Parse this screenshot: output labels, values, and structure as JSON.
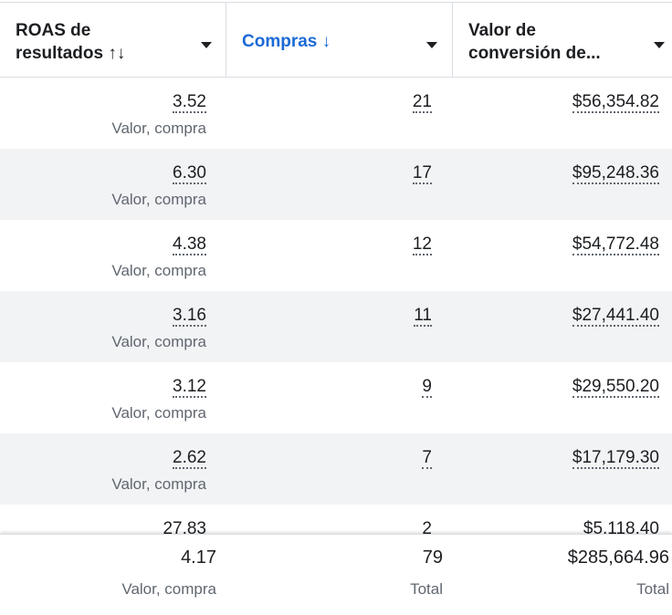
{
  "header": {
    "columns": [
      {
        "lines": [
          "ROAS de",
          "resultados ↑↓"
        ]
      },
      {
        "lines": [
          "Compras ↓"
        ]
      },
      {
        "lines": [
          "Valor de",
          "conversión de..."
        ]
      }
    ]
  },
  "rows": [
    {
      "roas": "3.52",
      "roas_note": "Valor, compra",
      "purchases": "21",
      "value": "$56,354.82"
    },
    {
      "roas": "6.30",
      "roas_note": "Valor, compra",
      "purchases": "17",
      "value": "$95,248.36"
    },
    {
      "roas": "4.38",
      "roas_note": "Valor, compra",
      "purchases": "12",
      "value": "$54,772.48"
    },
    {
      "roas": "3.16",
      "roas_note": "Valor, compra",
      "purchases": "11",
      "value": "$27,441.40"
    },
    {
      "roas": "3.12",
      "roas_note": "Valor, compra",
      "purchases": "9",
      "value": "$29,550.20"
    },
    {
      "roas": "2.62",
      "roas_note": "Valor, compra",
      "purchases": "7",
      "value": "$17,179.30"
    },
    {
      "roas": "27.83",
      "purchases": "2",
      "value": "$5,118.40"
    }
  ],
  "footer": {
    "roas": "4.17",
    "roas_note": "Valor, compra",
    "purchases": "79",
    "purchases_note": "Total",
    "value": "$285,664.96",
    "value_note": "Total"
  }
}
